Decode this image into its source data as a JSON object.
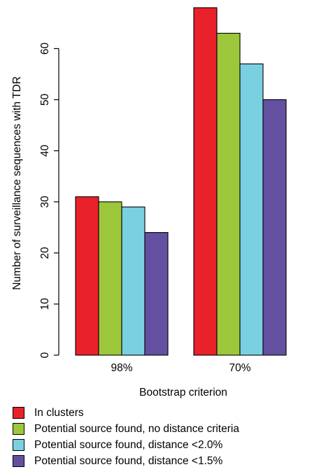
{
  "chart_data": {
    "type": "bar",
    "title": "",
    "xlabel": "Bootstrap criterion",
    "ylabel": "Number of surveillance sequences with TDR",
    "categories": [
      "98%",
      "70%"
    ],
    "ylim": [
      0,
      68
    ],
    "yticks": [
      0,
      10,
      20,
      30,
      40,
      50,
      60
    ],
    "grid": false,
    "legend_position": "bottom",
    "series": [
      {
        "name": "In clusters",
        "values": [
          31,
          68
        ],
        "color": "#e8212a"
      },
      {
        "name": "Potential source found, no distance criteria",
        "values": [
          30,
          63
        ],
        "color": "#9dc73b"
      },
      {
        "name": "Potential source found, distance <2.0%",
        "values": [
          29,
          57
        ],
        "color": "#7ad0e1"
      },
      {
        "name": "Potential source found, distance <1.5%",
        "values": [
          24,
          50
        ],
        "color": "#6450a0"
      }
    ]
  }
}
